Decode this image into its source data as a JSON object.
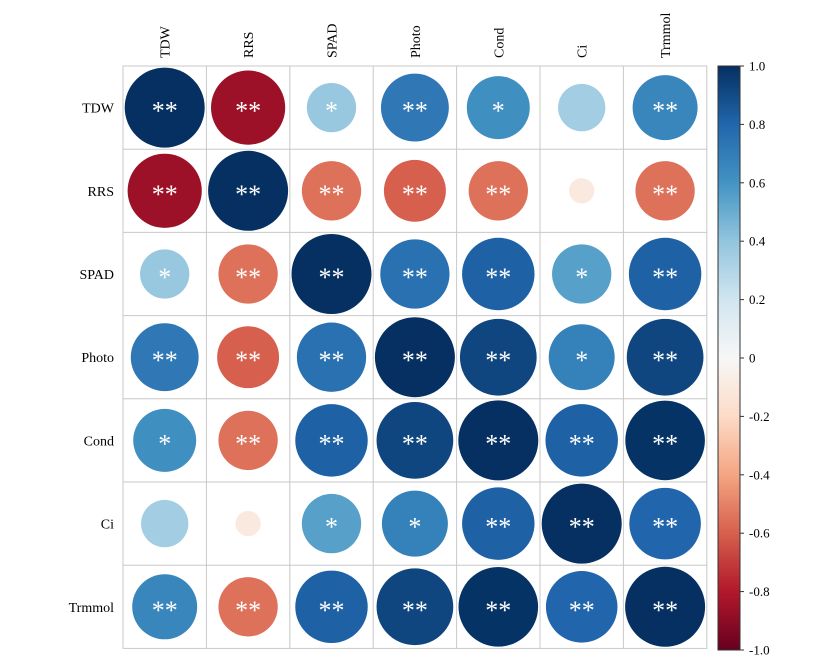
{
  "chart_data": {
    "type": "heatmap",
    "title": "",
    "variables": [
      "TDW",
      "RRS",
      "SPAD",
      "Photo",
      "Cond",
      "Ci",
      "Trmmol"
    ],
    "matrix": [
      [
        1.0,
        -0.86,
        0.38,
        0.72,
        0.62,
        0.35,
        0.66
      ],
      [
        -0.86,
        1.0,
        -0.55,
        -0.6,
        -0.55,
        -0.1,
        -0.55
      ],
      [
        0.38,
        -0.55,
        1.0,
        0.75,
        0.82,
        0.55,
        0.82
      ],
      [
        0.72,
        -0.6,
        0.75,
        1.0,
        0.92,
        0.68,
        0.92
      ],
      [
        0.62,
        -0.55,
        0.82,
        0.92,
        1.0,
        0.82,
        0.99
      ],
      [
        0.35,
        -0.1,
        0.55,
        0.68,
        0.82,
        1.0,
        0.8
      ],
      [
        0.66,
        -0.55,
        0.82,
        0.92,
        0.99,
        0.8,
        1.0
      ]
    ],
    "significance": [
      [
        "**",
        "**",
        "*",
        "**",
        "*",
        "",
        "**"
      ],
      [
        "**",
        "**",
        "**",
        "**",
        "**",
        "",
        "**"
      ],
      [
        "*",
        "**",
        "**",
        "**",
        "**",
        "*",
        "**"
      ],
      [
        "**",
        "**",
        "**",
        "**",
        "**",
        "*",
        "**"
      ],
      [
        "*",
        "**",
        "**",
        "**",
        "**",
        "**",
        "**"
      ],
      [
        "",
        "",
        "*",
        "*",
        "**",
        "**",
        "**"
      ],
      [
        "**",
        "**",
        "**",
        "**",
        "**",
        "**",
        "**"
      ]
    ],
    "colorbar": {
      "range": [
        -1.0,
        1.0
      ],
      "ticks": [
        "1.0",
        "0.8",
        "0.6",
        "0.4",
        "0.2",
        "0",
        "-0.2",
        "-0.4",
        "-0.6",
        "-0.8",
        "-1.0"
      ],
      "colors": {
        "neg_strong": "#67001f",
        "neg_mid": "#d6604d",
        "neg_light": "#fddbc7",
        "zero": "#f7f7f7",
        "pos_light": "#d1e5f0",
        "pos_mid": "#4393c3",
        "pos_strong": "#053061"
      }
    },
    "legend": "right",
    "grid": true
  }
}
